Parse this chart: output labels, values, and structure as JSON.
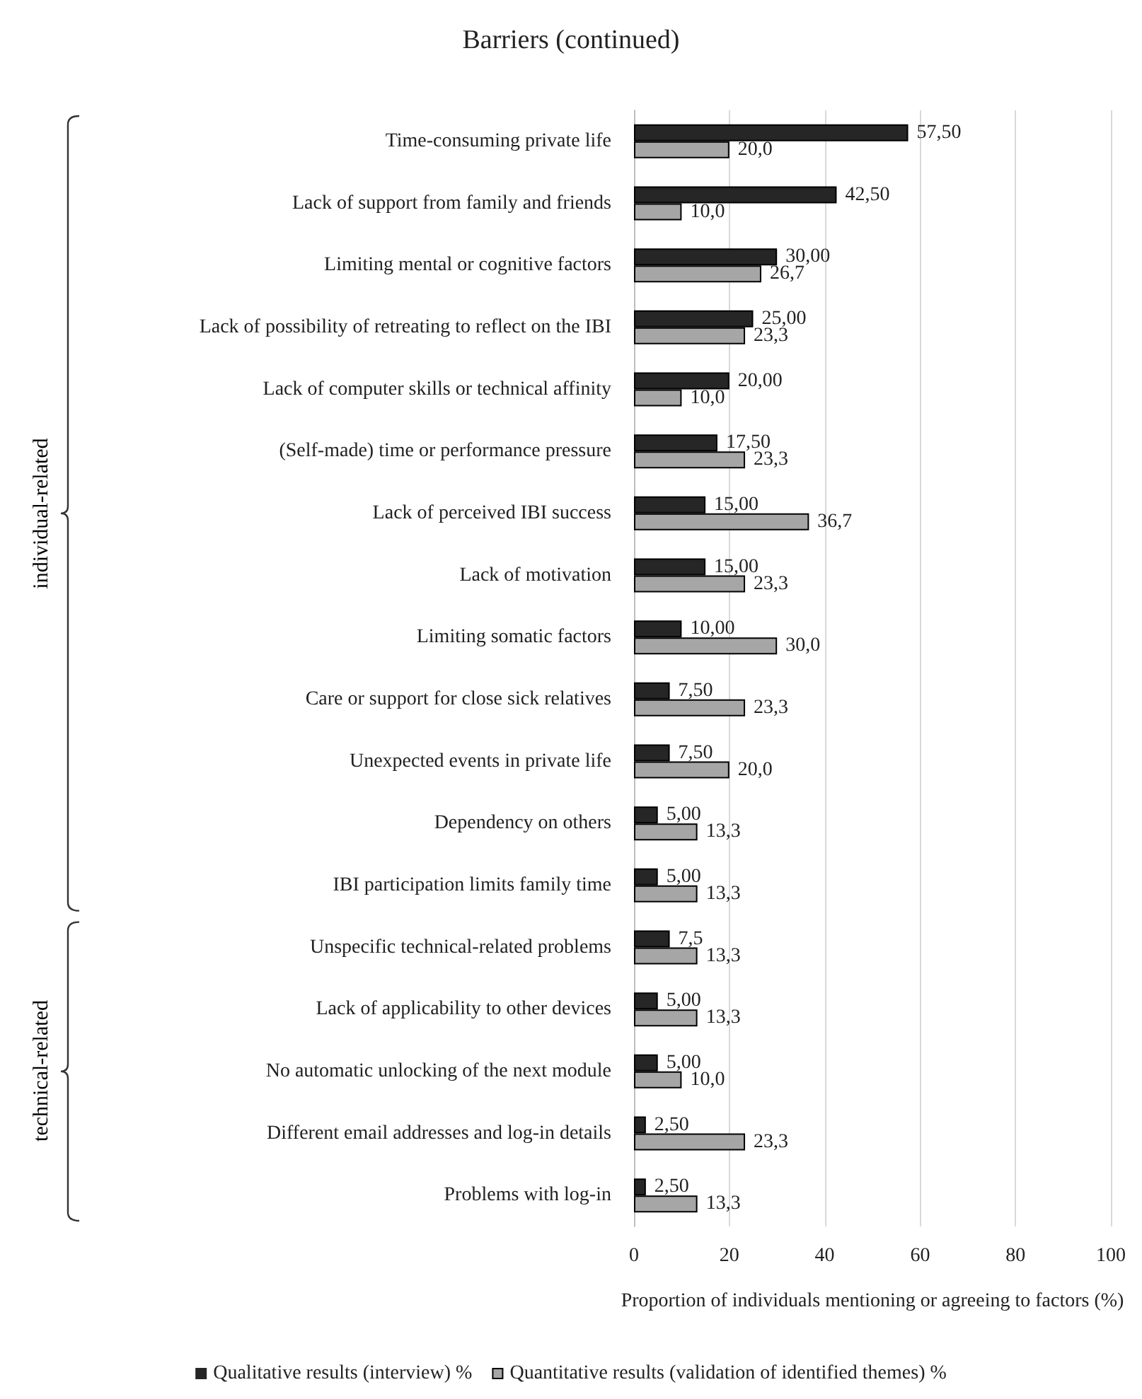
{
  "chart_data": {
    "type": "bar",
    "orientation": "horizontal",
    "title": "Barriers (continued)",
    "xlabel": "Proportion of individuals mentioning or agreeing to factors (%)",
    "categories": [
      "Time-consuming private life",
      "Lack of support from family and friends",
      "Limiting mental or cognitive factors",
      "Lack of possibility of retreating to reflect on the IBI",
      "Lack of computer skills or technical affinity",
      "(Self-made) time or performance pressure",
      "Lack of perceived IBI success",
      "Lack of motivation",
      "Limiting somatic factors",
      "Care or support for close sick relatives",
      "Unexpected events in private life",
      "Dependency on others",
      "IBI participation limits family time",
      "Unspecific technical-related problems",
      "Lack of applicability to other devices",
      "No automatic unlocking of the next module",
      "Different email addresses and log-in details",
      "Problems with log-in"
    ],
    "series": [
      {
        "name": "Qualitative results (interview) %",
        "color": "#262626",
        "values": [
          57.5,
          42.5,
          30,
          25,
          20,
          17.5,
          15,
          15,
          10,
          7.5,
          7.5,
          5,
          5,
          7.5,
          5,
          5,
          2.5,
          2.5
        ],
        "value_labels": [
          "57,50",
          "42,50",
          "30,00",
          "25,00",
          "20,00",
          "17,50",
          "15,00",
          "15,00",
          "10,00",
          "7,50",
          "7,50",
          "5,00",
          "5,00",
          "7,5",
          "5,00",
          "5,00",
          "2,50",
          "2,50"
        ]
      },
      {
        "name": "Quantitative results (validation of identified themes) %",
        "color": "#a6a6a6",
        "values": [
          20,
          10,
          26.7,
          23.3,
          10,
          23.3,
          36.7,
          23.3,
          30,
          23.3,
          20,
          13.3,
          13.3,
          13.3,
          13.3,
          10,
          23.3,
          13.3
        ],
        "value_labels": [
          "20,0",
          "10,0",
          "26,7",
          "23,3",
          "10,0",
          "23,3",
          "36,7",
          "23,3",
          "30,0",
          "23,3",
          "20,0",
          "13,3",
          "13,3",
          "13,3",
          "13,3",
          "10,0",
          "23,3",
          "13,3"
        ]
      }
    ],
    "xlim": [
      0,
      100
    ],
    "xticks": [
      0,
      20,
      40,
      60,
      80,
      100
    ],
    "grid": "x",
    "legend": "bottom",
    "annotations": [
      "individual-related",
      "technical-related"
    ]
  }
}
